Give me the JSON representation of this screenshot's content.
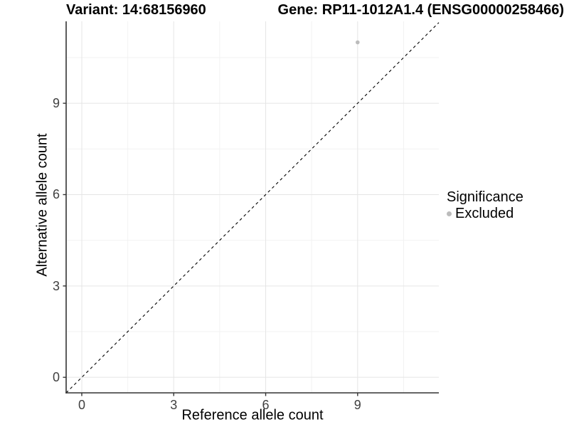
{
  "chart_data": {
    "type": "scatter",
    "title_left": "Variant: 14:68156960",
    "title_right": "Gene: RP11-1012A1.4 (ENSG00000258466)",
    "xlabel": "Reference allele count",
    "ylabel": "Alternative allele count",
    "x_ticks": [
      0,
      3,
      6,
      9
    ],
    "y_ticks": [
      0,
      3,
      6,
      9
    ],
    "minor_ticks": [
      1.5,
      4.5,
      7.5,
      10.5
    ],
    "xlim": [
      -0.51,
      11.65
    ],
    "ylim": [
      -0.51,
      11.69
    ],
    "grid": true,
    "points": [
      {
        "x": 9,
        "y": 11,
        "series": "Excluded"
      }
    ],
    "identity_line": {
      "style": "dashed",
      "equation": "y = x"
    },
    "legend": {
      "title": "Significance",
      "position": "right",
      "items": [
        {
          "label": "Excluded",
          "color": "#bcbcbc"
        }
      ]
    },
    "colors": {
      "point": "#bcbcbc",
      "grid_major": "#e5e5e5",
      "grid_minor": "#f2f2f2",
      "axis": "#333333",
      "dashed_line": "#000000",
      "tick_text": "#404040",
      "background": "#ffffff"
    }
  }
}
